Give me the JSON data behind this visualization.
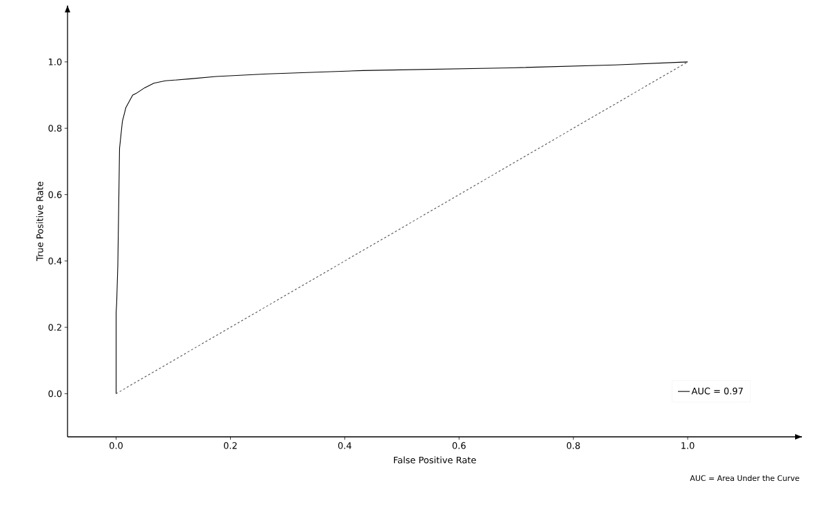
{
  "chart_data": {
    "type": "line",
    "xlabel": "False Positive Rate",
    "ylabel": "True Positive Rate",
    "xlim": [
      -0.085,
      1.2
    ],
    "ylim": [
      -0.13,
      1.17
    ],
    "xticks": [
      {
        "value": 0,
        "label": "0.0"
      },
      0.2,
      0.4,
      0.6,
      0.8,
      {
        "value": 1,
        "label": "1.0"
      }
    ],
    "yticks": [
      {
        "value": 0,
        "label": "0.0"
      },
      0.2,
      0.4,
      0.6,
      0.8,
      {
        "value": 1,
        "label": "1.0"
      }
    ],
    "legend": "bottom right",
    "grid": false,
    "annotations": [
      "AUC = Area Under the Curve"
    ],
    "series": [
      {
        "name": "AUC = 0.97",
        "color": "#000000",
        "line_style": "solid",
        "x": [
          0,
          0,
          0.001,
          0.003,
          0.005,
          0.006,
          0.011,
          0.017,
          0.029,
          0.035,
          0.05,
          0.066,
          0.086,
          0.13,
          0.175,
          0.265,
          0.432,
          0.69,
          0.873,
          1.0
        ],
        "values": [
          0,
          0.244,
          0.274,
          0.387,
          0.619,
          0.739,
          0.821,
          0.862,
          0.9,
          0.905,
          0.922,
          0.936,
          0.943,
          0.949,
          0.956,
          0.964,
          0.974,
          0.982,
          0.991,
          1.0
        ]
      },
      {
        "color": "#555555",
        "line_style": "dashed",
        "x": [
          0,
          1
        ],
        "values": [
          0,
          1
        ]
      }
    ]
  }
}
